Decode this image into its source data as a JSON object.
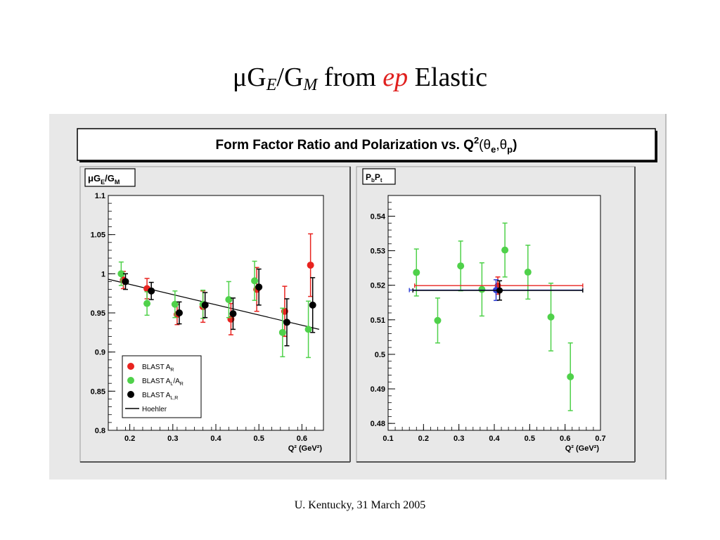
{
  "slide": {
    "title_mu": "μG",
    "title_sub_e": "E",
    "title_slash": "/G",
    "title_sub_m": "M",
    "title_from": " from ",
    "title_ep": "ep",
    "title_elastic": " Elastic",
    "footer": "U. Kentucky, 31 March 2005",
    "accent_color": "#e0201e"
  },
  "banner": {
    "text": "Form Factor Ratio and Polarization vs. Q",
    "sup": "2",
    "args": "(θ",
    "sub_e": "e",
    "comma": ",θ",
    "sub_p": "p",
    "close": ")"
  },
  "chart_data": [
    {
      "type": "scatter",
      "panel_label": "μG_E/G_M",
      "label_mu": "μG",
      "label_sub_e": "E",
      "label_slash": "/G",
      "label_sub_m": "M",
      "xlabel": "Q² (GeV²)",
      "xlim": [
        0.15,
        0.65
      ],
      "ylim": [
        0.8,
        1.1
      ],
      "x_ticks": [
        0.2,
        0.3,
        0.4,
        0.5,
        0.6
      ],
      "x_tick_labels": [
        "0.2",
        "0.3",
        "0.4",
        "0.5",
        "0.6"
      ],
      "y_ticks": [
        0.8,
        0.85,
        0.9,
        0.95,
        1.0,
        1.05,
        1.1
      ],
      "y_tick_labels": [
        "0.8",
        "0.85",
        "0.9",
        "0.95",
        "1",
        "1.05",
        "1.1"
      ],
      "legend_position": "bottom-left",
      "series": [
        {
          "name": "BLAST A_R",
          "color": "#e8231f",
          "x": [
            0.185,
            0.24,
            0.31,
            0.37,
            0.435,
            0.495,
            0.56,
            0.62
          ],
          "y": [
            0.992,
            0.981,
            0.948,
            0.958,
            0.942,
            0.98,
            0.952,
            1.011
          ],
          "err": [
            0.011,
            0.013,
            0.013,
            0.02,
            0.02,
            0.028,
            0.032,
            0.04
          ]
        },
        {
          "name": "BLAST A_L/A_R",
          "color": "#4fd14a",
          "x": [
            0.18,
            0.24,
            0.305,
            0.37,
            0.43,
            0.49,
            0.555,
            0.615
          ],
          "y": [
            1.0,
            0.962,
            0.961,
            0.961,
            0.967,
            0.991,
            0.925,
            0.929
          ],
          "err": [
            0.015,
            0.015,
            0.017,
            0.018,
            0.023,
            0.025,
            0.031,
            0.036
          ]
        },
        {
          "name": "BLAST A_L,R",
          "color": "#000000",
          "x": [
            0.19,
            0.25,
            0.315,
            0.375,
            0.44,
            0.5,
            0.565,
            0.625
          ],
          "y": [
            0.99,
            0.978,
            0.95,
            0.96,
            0.949,
            0.983,
            0.938,
            0.96
          ],
          "err": [
            0.01,
            0.011,
            0.014,
            0.016,
            0.02,
            0.023,
            0.03,
            0.035
          ]
        }
      ],
      "curves": [
        {
          "name": "Hoehler",
          "color": "#000000",
          "x": [
            0.15,
            0.64
          ],
          "y": [
            0.993,
            0.929
          ]
        }
      ],
      "legend": [
        {
          "label": "BLAST A",
          "sub": "R",
          "tail": "",
          "sub2": "",
          "kind": "marker",
          "color": "#e8231f"
        },
        {
          "label": "BLAST A",
          "sub": "L",
          "tail": "/A",
          "sub2": "R",
          "kind": "marker",
          "color": "#4fd14a"
        },
        {
          "label": "BLAST A",
          "sub": "L,R",
          "tail": "",
          "sub2": "",
          "kind": "marker",
          "color": "#000000"
        },
        {
          "label": "Hoehler",
          "sub": "",
          "tail": "",
          "sub2": "",
          "kind": "line",
          "color": "#000000"
        }
      ]
    },
    {
      "type": "scatter",
      "panel_label": "P_bP_t",
      "label_p1": "P",
      "label_sub_b": "b",
      "label_p2": "P",
      "label_sub_t": "t",
      "xlabel": "Q² (GeV²)",
      "xlim": [
        0.1,
        0.7
      ],
      "ylim": [
        0.478,
        0.546
      ],
      "x_ticks": [
        0.1,
        0.2,
        0.3,
        0.4,
        0.5,
        0.6,
        0.7
      ],
      "x_tick_labels": [
        "0.1",
        "0.2",
        "0.3",
        "0.4",
        "0.5",
        "0.6",
        "0.7"
      ],
      "y_ticks": [
        0.48,
        0.49,
        0.5,
        0.51,
        0.52,
        0.53,
        0.54
      ],
      "y_tick_labels": [
        "0.48",
        "0.49",
        "0.5",
        "0.51",
        "0.52",
        "0.53",
        "0.54"
      ],
      "series": [
        {
          "name": "",
          "color": "#4fd14a",
          "x": [
            0.18,
            0.24,
            0.305,
            0.365,
            0.43,
            0.495,
            0.56,
            0.615
          ],
          "y": [
            0.5237,
            0.5098,
            0.5256,
            0.5188,
            0.5302,
            0.5238,
            0.5108,
            0.4935
          ],
          "err": [
            0.0068,
            0.0065,
            0.0072,
            0.0077,
            0.0078,
            0.0078,
            0.0098,
            0.0098
          ]
        }
      ],
      "averages": [
        {
          "color": "#e8231f",
          "x": 0.41,
          "y": 0.5199,
          "xlo": 0.175,
          "xhi": 0.65,
          "err": 0.0025
        },
        {
          "color": "#2f3fd6",
          "x": 0.405,
          "y": 0.5186,
          "xlo": 0.16,
          "xhi": 0.65,
          "err": 0.003
        },
        {
          "color": "#000000",
          "x": 0.415,
          "y": 0.5185,
          "xlo": 0.17,
          "xhi": 0.65,
          "err": 0.0028
        }
      ]
    }
  ]
}
